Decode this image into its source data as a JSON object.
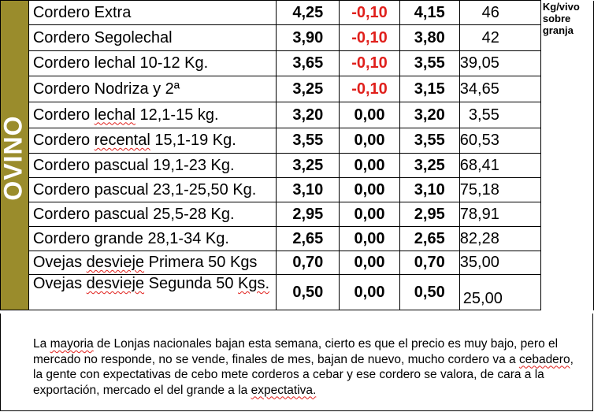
{
  "section_label": "OVINO",
  "unit_note_lines": [
    "Kg/vivo",
    "sobre",
    "granja"
  ],
  "rows": [
    {
      "name": "Cordero Extra",
      "price": "4,25",
      "change": "-0,10",
      "new_price": "4,15",
      "weight": "46"
    },
    {
      "name": "Cordero Segolechal",
      "price": "3,90",
      "change": "-0,10",
      "new_price": "3,80",
      "weight": "42"
    },
    {
      "name": "Cordero lechal 10-12 Kg.",
      "price": "3,65",
      "change": "-0,10",
      "new_price": "3,55",
      "weight": "39,05"
    },
    {
      "name": "Cordero Nodriza y 2ª",
      "price": "3,25",
      "change": "-0,10",
      "new_price": "3,15",
      "weight": "34,65"
    },
    {
      "name": "Cordero lechal 12,1-15 kg.",
      "price": "3,20",
      "change": "0,00",
      "new_price": "3,20",
      "weight": "3,55"
    },
    {
      "name": "Cordero recental 15,1-19 Kg.",
      "price": "3,55",
      "change": "0,00",
      "new_price": "3,55",
      "weight": "60,53"
    },
    {
      "name": "Cordero pascual 19,1-23 Kg.",
      "price": "3,25",
      "change": "0,00",
      "new_price": "3,25",
      "weight": "68,41"
    },
    {
      "name": "Cordero pascual 23,1-25,50 Kg.",
      "price": "3,10",
      "change": "0,00",
      "new_price": "3,10",
      "weight": "75,18"
    },
    {
      "name": "Cordero pascual 25,5-28 Kg.",
      "price": "2,95",
      "change": "0,00",
      "new_price": "2,95",
      "weight": "78,91"
    },
    {
      "name": "Cordero grande 28,1-34 Kg.",
      "price": "2,65",
      "change": "0,00",
      "new_price": "2,65",
      "weight": "82,28"
    },
    {
      "name": "Ovejas desvieje Primera 50 Kgs",
      "price": "0,70",
      "change": "0,00",
      "new_price": "0,70",
      "weight": "35,00"
    },
    {
      "name": "Ovejas desvieje Segunda 50 Kgs.",
      "price": "0,50",
      "change": "0,00",
      "new_price": "0,50",
      "weight": "25,00"
    }
  ],
  "note": "La mayoria de Lonjas nacionales bajan esta semana, cierto es que el precio es muy bajo, pero el mercado no responde, no se vende, finales de mes, bajan de nuevo, mucho cordero va a cebadero, la gente con expectativas de cebo mete corderos a cebar y ese cordero se valora, de cara a la exportación, mercado el del grande a la expectativa."
}
